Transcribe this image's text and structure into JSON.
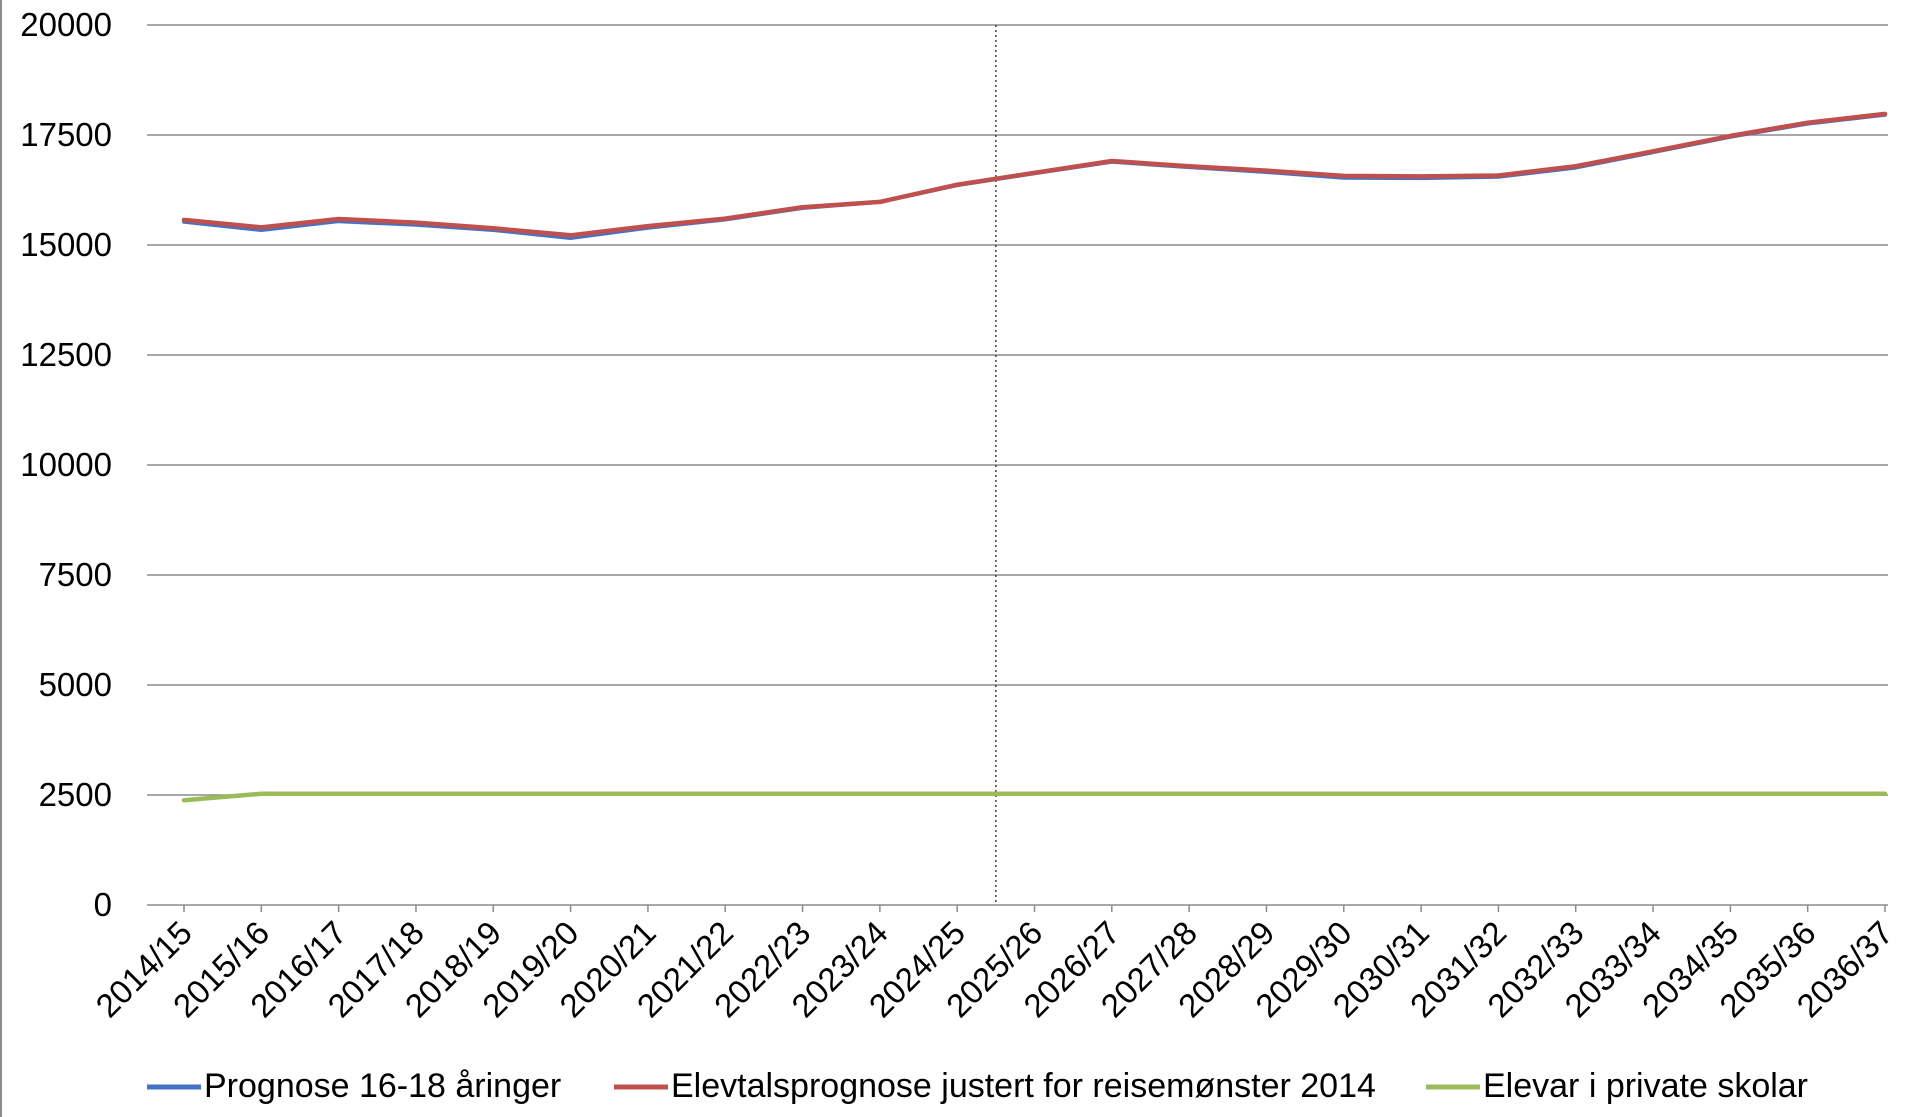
{
  "chart_data": {
    "type": "line",
    "title": "",
    "xlabel": "",
    "ylabel": "",
    "ylim": [
      0,
      20000
    ],
    "yticks": [
      0,
      2500,
      5000,
      7500,
      10000,
      12500,
      15000,
      17500,
      20000
    ],
    "grid": true,
    "legend_position": "bottom",
    "categories": [
      "2014/15",
      "2015/16",
      "2016/17",
      "2017/18",
      "2018/19",
      "2019/20",
      "2020/21",
      "2021/22",
      "2022/23",
      "2023/24",
      "2024/25",
      "2025/26",
      "2026/27",
      "2027/28",
      "2028/29",
      "2029/30",
      "2030/31",
      "2031/32",
      "2032/33",
      "2033/34",
      "2034/35",
      "2035/36",
      "2036/37"
    ],
    "separator_between": [
      "2024/25",
      "2025/26"
    ],
    "series": [
      {
        "name": "Prognose 16-18 åringer",
        "color": "#4472C4",
        "values": [
          15530,
          15340,
          15540,
          15460,
          15340,
          15160,
          15390,
          15580,
          15840,
          15980,
          16360,
          16630,
          16890,
          16770,
          16660,
          16530,
          16520,
          16550,
          16760,
          17110,
          17460,
          17760,
          17960
        ]
      },
      {
        "name": "Elevtalsprognose justert for reisemønster 2014",
        "color": "#C0504D",
        "values": [
          15570,
          15400,
          15590,
          15510,
          15380,
          15220,
          15430,
          15600,
          15860,
          15980,
          16370,
          16640,
          16910,
          16790,
          16690,
          16570,
          16560,
          16580,
          16790,
          17130,
          17480,
          17780,
          17980
        ]
      },
      {
        "name": "Elevar i private skolar",
        "color": "#9BBB59",
        "values": [
          2380,
          2530,
          2530,
          2530,
          2530,
          2530,
          2530,
          2530,
          2530,
          2530,
          2530,
          2530,
          2530,
          2530,
          2530,
          2530,
          2530,
          2530,
          2530,
          2530,
          2530,
          2530,
          2530
        ]
      }
    ]
  }
}
